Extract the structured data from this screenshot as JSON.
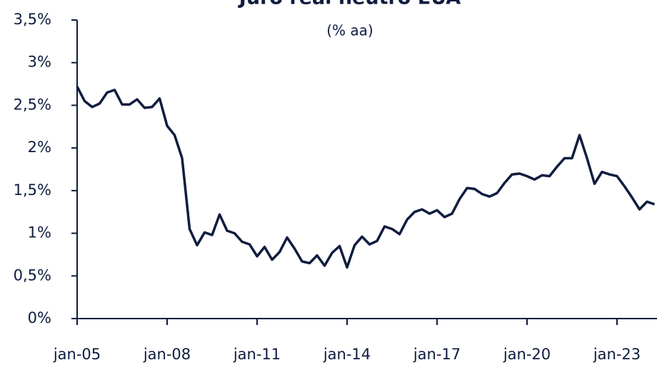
{
  "chart_data": {
    "type": "line",
    "title": "Juro real neutro EUA",
    "subtitle": "(% aa)",
    "categories": [
      "jan-05",
      null,
      null,
      null,
      null,
      null,
      null,
      null,
      null,
      null,
      null,
      null,
      "jan-08",
      null,
      null,
      null,
      null,
      null,
      null,
      null,
      null,
      null,
      null,
      null,
      "jan-11",
      null,
      null,
      null,
      null,
      null,
      null,
      null,
      null,
      null,
      null,
      null,
      "jan-14",
      null,
      null,
      null,
      null,
      null,
      null,
      null,
      null,
      null,
      null,
      null,
      "jan-17",
      null,
      null,
      null,
      null,
      null,
      null,
      null,
      null,
      null,
      null,
      null,
      "jan-20",
      null,
      null,
      null,
      null,
      null,
      null,
      null,
      null,
      null,
      null,
      null,
      "jan-23",
      null,
      null,
      null,
      null,
      null
    ],
    "values": [
      2.72,
      2.55,
      2.48,
      2.52,
      2.65,
      2.68,
      2.51,
      2.51,
      2.57,
      2.47,
      2.48,
      2.58,
      2.26,
      2.15,
      1.88,
      1.05,
      0.86,
      1.01,
      0.98,
      1.22,
      1.03,
      1.0,
      0.9,
      0.87,
      0.73,
      0.84,
      0.69,
      0.78,
      0.95,
      0.82,
      0.67,
      0.65,
      0.74,
      0.62,
      0.77,
      0.85,
      0.6,
      0.86,
      0.96,
      0.87,
      0.91,
      1.08,
      1.05,
      0.99,
      1.16,
      1.25,
      1.28,
      1.23,
      1.27,
      1.19,
      1.23,
      1.4,
      1.53,
      1.52,
      1.46,
      1.43,
      1.47,
      1.59,
      1.69,
      1.7,
      1.67,
      1.63,
      1.68,
      1.67,
      1.78,
      1.88,
      1.88,
      2.15,
      1.88,
      1.58,
      1.72,
      1.69,
      1.67,
      1.55,
      1.42,
      1.28,
      1.37,
      1.34
    ],
    "color": "#0f1c3f",
    "ylim": [
      0,
      3.5
    ],
    "yticks": [
      {
        "value": 0,
        "label": "0%"
      },
      {
        "value": 0.5,
        "label": "0,5%"
      },
      {
        "value": 1,
        "label": "1%"
      },
      {
        "value": 1.5,
        "label": "1,5%"
      },
      {
        "value": 2,
        "label": "2%"
      },
      {
        "value": 2.5,
        "label": "2,5%"
      },
      {
        "value": 3,
        "label": "3%"
      },
      {
        "value": 3.5,
        "label": "3,5%"
      }
    ]
  }
}
